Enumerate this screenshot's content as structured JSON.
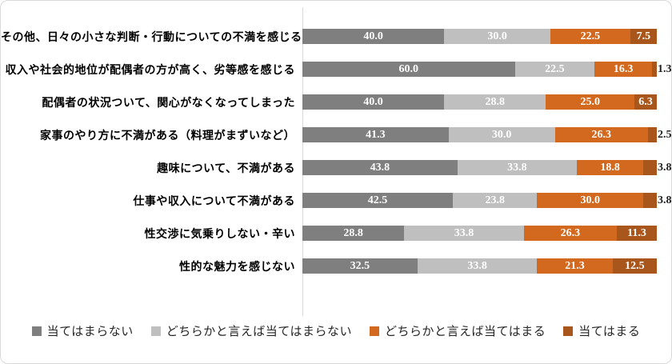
{
  "chart_data": {
    "type": "bar",
    "subtype": "horizontal-stacked",
    "title": "",
    "xlabel": "",
    "ylabel": "",
    "xlim": [
      0,
      100
    ],
    "grid": false,
    "legend_position": "bottom",
    "value_label_color_inside": "#ffffff",
    "value_label_color_outside": "#1f1f1f",
    "axis_line_color": "#d9d9d9",
    "categories": [
      "その他、日々の小さな判断・行動についての不満を感じる",
      "収入や社会的地位が配偶者の方が高く、劣等感を感じる",
      "配偶者の状況ついて、関心がなくなってしまった",
      "家事のやり方に不満がある（料理がまずいなど）",
      "趣味について、不満がある",
      "仕事や収入について不満がある",
      "性交渉に気乗りしない・辛い",
      "性的な魅力を感じない"
    ],
    "series": [
      {
        "name": "当てはまらない",
        "color": "#7f7f7f",
        "values": [
          40.0,
          60.0,
          40.0,
          41.3,
          43.8,
          42.5,
          28.8,
          32.5
        ]
      },
      {
        "name": "どちらかと言えば当てはまらない",
        "color": "#bfbfbf",
        "values": [
          30.0,
          22.5,
          28.8,
          30.0,
          33.8,
          23.8,
          33.8,
          33.8
        ]
      },
      {
        "name": "どちらかと言えば当てはまる",
        "color": "#d2691e",
        "values": [
          22.5,
          16.3,
          25.0,
          26.3,
          18.8,
          30.0,
          26.3,
          21.3
        ]
      },
      {
        "name": "当てはまる",
        "color": "#a9561c",
        "values": [
          7.5,
          1.3,
          6.3,
          2.5,
          3.8,
          3.8,
          11.3,
          12.5
        ]
      }
    ],
    "small_segment_threshold": 5.0
  }
}
